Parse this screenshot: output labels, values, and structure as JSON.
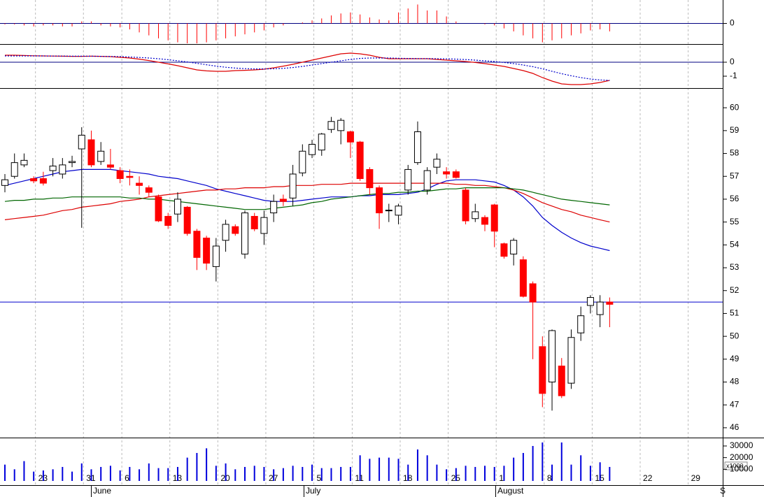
{
  "chart_data": [
    {
      "type": "bar",
      "color": "#ff0000",
      "ylim": [
        -1,
        1
      ],
      "yticks": [
        0
      ],
      "values": [
        -0.05,
        -0.05,
        -0.1,
        -0.15,
        -0.1,
        -0.1,
        -0.15,
        -0.15,
        0.1,
        0.1,
        -0.1,
        -0.15,
        -0.2,
        -0.3,
        -0.45,
        -0.6,
        -0.75,
        -0.85,
        -0.95,
        -1.0,
        -1.0,
        -0.95,
        -0.85,
        -0.75,
        -0.65,
        -0.55,
        -0.45,
        -0.35,
        -0.2,
        -0.1,
        0.0,
        0.05,
        0.15,
        0.25,
        0.4,
        0.5,
        0.55,
        0.45,
        0.3,
        0.2,
        0.15,
        0.55,
        0.75,
        0.95,
        0.65,
        0.65,
        0.35,
        0.1,
        0.0,
        0.0,
        -0.05,
        -0.1,
        -0.25,
        -0.4,
        -0.6,
        -0.75,
        -0.95,
        -0.85,
        -0.75,
        -0.6,
        -0.5,
        -0.35,
        -0.3,
        -0.4,
        null,
        null,
        null,
        null,
        null,
        null,
        null,
        null
      ]
    },
    {
      "type": "line",
      "ylim": [
        -1.8,
        1.2
      ],
      "yticks": [
        0,
        -1
      ],
      "series": [
        {
          "color": "#dd0000",
          "dashed": false,
          "values": [
            0.5,
            0.5,
            0.48,
            0.46,
            0.45,
            0.44,
            0.43,
            0.42,
            0.42,
            0.43,
            0.42,
            0.4,
            0.35,
            0.3,
            0.22,
            0.12,
            0.0,
            -0.12,
            -0.25,
            -0.4,
            -0.55,
            -0.62,
            -0.65,
            -0.65,
            -0.6,
            -0.58,
            -0.55,
            -0.5,
            -0.4,
            -0.28,
            -0.15,
            0.0,
            0.15,
            0.3,
            0.45,
            0.6,
            0.65,
            0.6,
            0.5,
            0.35,
            0.25,
            0.25,
            0.25,
            0.25,
            0.25,
            0.2,
            0.15,
            0.1,
            0.05,
            -0.02,
            -0.1,
            -0.2,
            -0.3,
            -0.45,
            -0.6,
            -0.8,
            -1.1,
            -1.35,
            -1.55,
            -1.6,
            -1.6,
            -1.55,
            -1.45,
            -1.3,
            null,
            null,
            null,
            null,
            null,
            null,
            null,
            null
          ]
        },
        {
          "color": "#0000cc",
          "dashed": true,
          "values": [
            0.45,
            0.45,
            0.45,
            0.45,
            0.45,
            0.44,
            0.44,
            0.43,
            0.43,
            0.43,
            0.42,
            0.41,
            0.4,
            0.37,
            0.34,
            0.3,
            0.25,
            0.18,
            0.1,
            0.02,
            -0.08,
            -0.18,
            -0.28,
            -0.36,
            -0.42,
            -0.46,
            -0.48,
            -0.48,
            -0.47,
            -0.44,
            -0.38,
            -0.3,
            -0.2,
            -0.1,
            0.0,
            0.1,
            0.2,
            0.27,
            0.3,
            0.3,
            0.3,
            0.28,
            0.27,
            0.26,
            0.26,
            0.25,
            0.24,
            0.22,
            0.19,
            0.15,
            0.1,
            0.05,
            -0.02,
            -0.1,
            -0.2,
            -0.32,
            -0.47,
            -0.65,
            -0.82,
            -0.97,
            -1.1,
            -1.2,
            -1.27,
            -1.3,
            null,
            null,
            null,
            null,
            null,
            null,
            null,
            null
          ]
        }
      ]
    },
    {
      "type": "candlestick",
      "ylim": [
        45.6,
        60.8
      ],
      "yticks": [
        46,
        47,
        48,
        49,
        50,
        51,
        52,
        53,
        54,
        55,
        56,
        57,
        58,
        59,
        60
      ],
      "up_color": "#ffffff",
      "down_color": "#ff0000",
      "hline": 51.5,
      "hline_color": "#0000cc",
      "months": [
        "June",
        "July",
        "August",
        "S"
      ],
      "categories": [
        null,
        null,
        null,
        "23",
        null,
        null,
        null,
        null,
        "31",
        null,
        null,
        null,
        "6",
        null,
        null,
        null,
        null,
        "13",
        null,
        null,
        null,
        null,
        "20",
        null,
        null,
        null,
        null,
        "27",
        null,
        null,
        null,
        null,
        "5",
        null,
        null,
        null,
        "11",
        null,
        null,
        null,
        null,
        "18",
        null,
        null,
        null,
        null,
        "25",
        null,
        null,
        null,
        null,
        "1",
        null,
        null,
        null,
        null,
        "8",
        null,
        null,
        null,
        null,
        "15",
        null,
        null,
        null,
        null,
        "22",
        null,
        null,
        null,
        null,
        "29"
      ],
      "open": [
        56.6,
        57.0,
        57.5,
        56.9,
        56.9,
        57.25,
        57.1,
        57.6,
        58.2,
        58.6,
        57.65,
        57.5,
        57.25,
        57.0,
        56.7,
        56.5,
        56.1,
        55.25,
        55.35,
        55.65,
        54.6,
        54.3,
        53.05,
        54.2,
        54.8,
        53.6,
        55.25,
        54.5,
        55.4,
        56.0,
        56.05,
        57.15,
        57.95,
        58.15,
        59.05,
        59.0,
        58.95,
        58.5,
        57.3,
        56.5,
        55.5,
        55.3,
        56.4,
        57.6,
        56.4,
        57.4,
        57.2,
        57.2,
        56.4,
        55.15,
        55.2,
        55.75,
        54.05,
        53.6,
        53.35,
        52.3,
        49.55,
        48.0,
        48.7,
        47.95,
        50.15,
        51.35,
        50.95,
        51.5,
        null,
        null,
        null,
        null,
        null,
        null,
        null,
        null
      ],
      "high": [
        57.1,
        58.0,
        58.0,
        57.0,
        57.2,
        57.8,
        57.8,
        57.9,
        59.15,
        59.0,
        58.5,
        58.2,
        57.4,
        57.3,
        57.0,
        56.6,
        56.2,
        55.4,
        56.3,
        55.7,
        54.7,
        54.4,
        54.3,
        55.1,
        54.9,
        55.5,
        55.4,
        55.5,
        56.2,
        56.2,
        57.5,
        58.4,
        58.6,
        58.9,
        59.6,
        59.55,
        59.0,
        58.55,
        57.4,
        56.6,
        55.8,
        55.8,
        57.5,
        59.4,
        57.4,
        58.0,
        57.4,
        57.3,
        56.5,
        55.8,
        55.3,
        55.8,
        54.1,
        54.3,
        53.5,
        52.4,
        50.0,
        50.3,
        49.05,
        50.3,
        51.3,
        51.8,
        51.8,
        51.7,
        null,
        null,
        null,
        null,
        null,
        null,
        null,
        null
      ],
      "low": [
        56.3,
        56.9,
        57.4,
        56.7,
        56.6,
        57.0,
        56.9,
        57.4,
        54.75,
        57.4,
        57.5,
        57.3,
        56.7,
        56.6,
        56.2,
        56.1,
        55.0,
        54.7,
        55.0,
        54.4,
        52.9,
        52.9,
        52.4,
        53.7,
        54.4,
        53.4,
        54.6,
        54.0,
        55.0,
        55.7,
        55.7,
        57.0,
        57.8,
        57.9,
        58.9,
        58.4,
        57.8,
        56.8,
        56.2,
        54.7,
        55.0,
        54.9,
        56.2,
        57.5,
        56.2,
        57.1,
        56.9,
        56.9,
        54.9,
        55.0,
        54.6,
        53.9,
        53.4,
        53.1,
        51.7,
        49.0,
        46.9,
        46.75,
        47.3,
        47.7,
        49.8,
        51.0,
        50.4,
        50.4,
        null,
        null,
        null,
        null,
        null,
        null,
        null,
        null
      ],
      "close": [
        56.85,
        57.6,
        57.7,
        56.8,
        56.7,
        57.45,
        57.5,
        57.65,
        58.8,
        57.5,
        58.1,
        57.4,
        56.9,
        56.95,
        56.6,
        56.3,
        55.05,
        54.85,
        56.0,
        54.5,
        53.45,
        53.2,
        53.95,
        54.9,
        54.5,
        55.4,
        54.7,
        55.2,
        55.9,
        55.9,
        57.1,
        58.1,
        58.4,
        58.85,
        59.4,
        59.45,
        58.5,
        56.9,
        56.5,
        55.4,
        55.52,
        55.7,
        57.3,
        58.95,
        57.25,
        57.75,
        57.1,
        56.95,
        55.05,
        55.45,
        54.9,
        54.6,
        53.5,
        54.2,
        51.75,
        51.5,
        47.5,
        50.25,
        47.4,
        49.95,
        50.9,
        51.7,
        51.5,
        51.4,
        null,
        null,
        null,
        null,
        null,
        null,
        null,
        null
      ],
      "series": [
        {
          "color": "#0000cc",
          "values": [
            56.6,
            56.7,
            56.8,
            56.9,
            57.0,
            57.1,
            57.2,
            57.25,
            57.3,
            57.3,
            57.3,
            57.3,
            57.25,
            57.2,
            57.15,
            57.1,
            57.0,
            56.95,
            56.9,
            56.8,
            56.7,
            56.6,
            56.45,
            56.35,
            56.25,
            56.15,
            56.05,
            55.95,
            55.9,
            55.9,
            55.9,
            55.95,
            56.0,
            56.05,
            56.1,
            56.1,
            56.1,
            56.15,
            56.15,
            56.2,
            56.2,
            56.2,
            56.25,
            56.3,
            56.45,
            56.65,
            56.8,
            56.85,
            56.85,
            56.85,
            56.8,
            56.75,
            56.6,
            56.4,
            56.1,
            55.7,
            55.2,
            54.85,
            54.55,
            54.3,
            54.1,
            53.95,
            53.85,
            53.75,
            null,
            null,
            null,
            null,
            null,
            null,
            null,
            null
          ]
        },
        {
          "color": "#dd0000",
          "values": [
            55.1,
            55.15,
            55.2,
            55.25,
            55.3,
            55.4,
            55.5,
            55.55,
            55.65,
            55.7,
            55.75,
            55.8,
            55.9,
            55.95,
            56.0,
            56.1,
            56.15,
            56.2,
            56.25,
            56.3,
            56.35,
            56.4,
            56.4,
            56.45,
            56.45,
            56.5,
            56.5,
            56.5,
            56.55,
            56.55,
            56.6,
            56.6,
            56.6,
            56.65,
            56.65,
            56.65,
            56.7,
            56.7,
            56.7,
            56.7,
            56.7,
            56.7,
            56.7,
            56.7,
            56.7,
            56.7,
            56.7,
            56.65,
            56.65,
            56.6,
            56.6,
            56.55,
            56.5,
            56.4,
            56.25,
            56.05,
            55.85,
            55.7,
            55.55,
            55.45,
            55.3,
            55.2,
            55.1,
            55.0,
            null,
            null,
            null,
            null,
            null,
            null,
            null,
            null
          ]
        },
        {
          "color": "#006600",
          "values": [
            55.9,
            55.95,
            55.95,
            56.0,
            56.0,
            56.05,
            56.05,
            56.1,
            56.1,
            56.1,
            56.1,
            56.1,
            56.1,
            56.05,
            56.05,
            56.0,
            56.0,
            55.95,
            55.9,
            55.85,
            55.8,
            55.75,
            55.7,
            55.65,
            55.6,
            55.55,
            55.55,
            55.55,
            55.6,
            55.65,
            55.7,
            55.75,
            55.85,
            55.9,
            56.0,
            56.05,
            56.1,
            56.15,
            56.2,
            56.25,
            56.25,
            56.3,
            56.3,
            56.35,
            56.35,
            56.4,
            56.45,
            56.45,
            56.5,
            56.5,
            56.5,
            56.5,
            56.5,
            56.45,
            56.4,
            56.3,
            56.2,
            56.1,
            56.0,
            55.95,
            55.9,
            55.85,
            55.8,
            55.75,
            null,
            null,
            null,
            null,
            null,
            null,
            null,
            null
          ]
        }
      ]
    },
    {
      "type": "bar",
      "color": "#0000dd",
      "ylim": [
        0,
        36000
      ],
      "yticks": [
        30000,
        20000,
        10000
      ],
      "annotation": "x1000",
      "values": [
        14000,
        10000,
        17000,
        8000,
        9000,
        10000,
        12000,
        8000,
        15000,
        10000,
        12000,
        13000,
        9000,
        12000,
        10000,
        15000,
        11000,
        11000,
        12000,
        20000,
        24000,
        28000,
        13000,
        15000,
        10000,
        12000,
        13000,
        12000,
        10000,
        11000,
        13000,
        12000,
        14000,
        11000,
        11000,
        12000,
        12000,
        22000,
        19000,
        20000,
        20000,
        19000,
        14000,
        27000,
        22000,
        14000,
        10000,
        11000,
        13000,
        12000,
        13000,
        12000,
        13000,
        20000,
        24000,
        30000,
        33000,
        14000,
        33000,
        14000,
        22000,
        13000,
        16000,
        12000,
        null,
        null,
        null,
        null,
        null,
        null,
        null,
        null
      ]
    }
  ]
}
